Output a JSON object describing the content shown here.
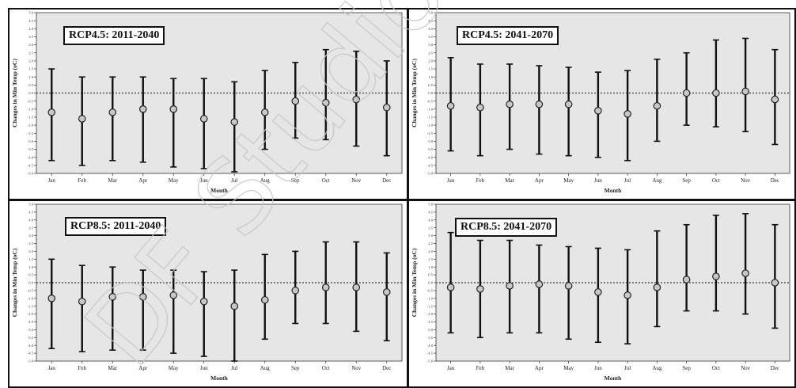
{
  "watermark": {
    "text": "DF Studio Trial"
  },
  "chart_data": [
    {
      "type": "errorbar",
      "title": "RCP4.5: 2011-2040",
      "xlabel": "Month",
      "ylabel": "Changes in Min Temp (oC)",
      "categories": [
        "Jan",
        "Feb",
        "Mar",
        "Apr",
        "May",
        "Jun",
        "Jul",
        "Aug",
        "Sep",
        "Oct",
        "Nov",
        "Dec"
      ],
      "ylim": [
        -5.0,
        5.0
      ],
      "yticks": [
        5.0,
        4.5,
        4.0,
        3.5,
        3.0,
        2.5,
        2.0,
        1.5,
        1.0,
        0.5,
        0.0,
        -0.5,
        -1.0,
        -1.5,
        -2.0,
        -2.5,
        -3.0,
        -3.5,
        -4.0,
        -4.5,
        -5.0
      ],
      "reference_line": 0,
      "mean": [
        -1.2,
        -1.6,
        -1.2,
        -1.0,
        -1.0,
        -1.6,
        -1.8,
        -1.2,
        -0.5,
        -0.6,
        -0.4,
        -0.9
      ],
      "upper": [
        1.5,
        1.0,
        1.0,
        1.0,
        0.9,
        0.9,
        0.7,
        1.4,
        1.9,
        2.7,
        2.6,
        2.0
      ],
      "lower": [
        -4.2,
        -4.5,
        -4.2,
        -4.3,
        -4.6,
        -4.7,
        -4.9,
        -3.5,
        -2.8,
        -2.9,
        -3.3,
        -3.9
      ]
    },
    {
      "type": "errorbar",
      "title": "RCP4.5: 2041-2070",
      "xlabel": "Month",
      "ylabel": "Changes in Min Temp (oC)",
      "categories": [
        "Jan",
        "Feb",
        "Mar",
        "Apr",
        "May",
        "Jun",
        "Jul",
        "Aug",
        "Sep",
        "Oct",
        "Nov",
        "Dec"
      ],
      "ylim": [
        -5.0,
        5.0
      ],
      "yticks": [
        5.0,
        4.5,
        4.0,
        3.5,
        3.0,
        2.5,
        2.0,
        1.5,
        1.0,
        0.5,
        0.0,
        -0.5,
        -1.0,
        -1.5,
        -2.0,
        -2.5,
        -3.0,
        -3.5,
        -4.0,
        -4.5,
        -5.0
      ],
      "reference_line": 0,
      "mean": [
        -0.8,
        -0.9,
        -0.7,
        -0.7,
        -0.7,
        -1.1,
        -1.3,
        -0.8,
        0.0,
        0.0,
        0.1,
        -0.4
      ],
      "upper": [
        2.2,
        1.8,
        1.8,
        1.7,
        1.6,
        1.3,
        1.4,
        2.1,
        2.5,
        3.3,
        3.4,
        2.7
      ],
      "lower": [
        -3.6,
        -3.9,
        -3.5,
        -3.8,
        -3.9,
        -4.0,
        -4.2,
        -3.0,
        -2.0,
        -2.1,
        -2.4,
        -3.2
      ]
    },
    {
      "type": "errorbar",
      "title": "RCP8.5: 2011-2040",
      "xlabel": "Month",
      "ylabel": "Changes in Min Temp (oC)",
      "categories": [
        "Jan",
        "Feb",
        "Mar",
        "Apr",
        "May",
        "Jun",
        "Jul",
        "Aug",
        "Sep",
        "Oct",
        "Nov",
        "Dec"
      ],
      "ylim": [
        -5.0,
        5.0
      ],
      "yticks": [
        5.0,
        4.5,
        4.0,
        3.5,
        3.0,
        2.5,
        2.0,
        1.5,
        1.0,
        0.5,
        0.0,
        -0.5,
        -1.0,
        -1.5,
        -2.0,
        -2.5,
        -3.0,
        -3.5,
        -4.0,
        -4.5,
        -5.0
      ],
      "reference_line": 0,
      "mean": [
        -1.0,
        -1.2,
        -0.9,
        -0.9,
        -0.8,
        -1.2,
        -1.5,
        -1.1,
        -0.5,
        -0.3,
        -0.3,
        -0.6
      ],
      "upper": [
        1.5,
        1.1,
        1.0,
        0.8,
        0.8,
        0.7,
        0.8,
        1.8,
        2.0,
        2.6,
        2.6,
        1.9
      ],
      "lower": [
        -4.2,
        -4.4,
        -4.3,
        -4.3,
        -4.5,
        -4.7,
        -5.0,
        -3.6,
        -2.6,
        -2.6,
        -3.1,
        -3.7
      ]
    },
    {
      "type": "errorbar",
      "title": "RCP8.5: 2041-2070",
      "xlabel": "Month",
      "ylabel": "Changes in Min Temp (oC)",
      "categories": [
        "Jan",
        "Feb",
        "Mar",
        "Apr",
        "May",
        "Jun",
        "Jul",
        "Aug",
        "Sep",
        "Oct",
        "Nov",
        "Dec"
      ],
      "ylim": [
        -5.0,
        5.0
      ],
      "yticks": [
        5.0,
        4.5,
        4.0,
        3.5,
        3.0,
        2.5,
        2.0,
        1.5,
        1.0,
        0.5,
        0.0,
        -0.5,
        -1.0,
        -1.5,
        -2.0,
        -2.5,
        -3.0,
        -3.5,
        -4.0,
        -4.5,
        -5.0
      ],
      "reference_line": 0,
      "mean": [
        -0.3,
        -0.4,
        -0.2,
        -0.1,
        -0.2,
        -0.6,
        -0.8,
        -0.3,
        0.2,
        0.4,
        0.6,
        0.0
      ],
      "upper": [
        3.2,
        2.7,
        2.7,
        2.4,
        2.3,
        2.2,
        2.1,
        3.3,
        3.7,
        4.3,
        4.4,
        3.7
      ],
      "lower": [
        -3.2,
        -3.5,
        -3.2,
        -3.2,
        -3.6,
        -3.8,
        -3.9,
        -2.8,
        -1.8,
        -1.8,
        -2.0,
        -2.9
      ]
    }
  ]
}
